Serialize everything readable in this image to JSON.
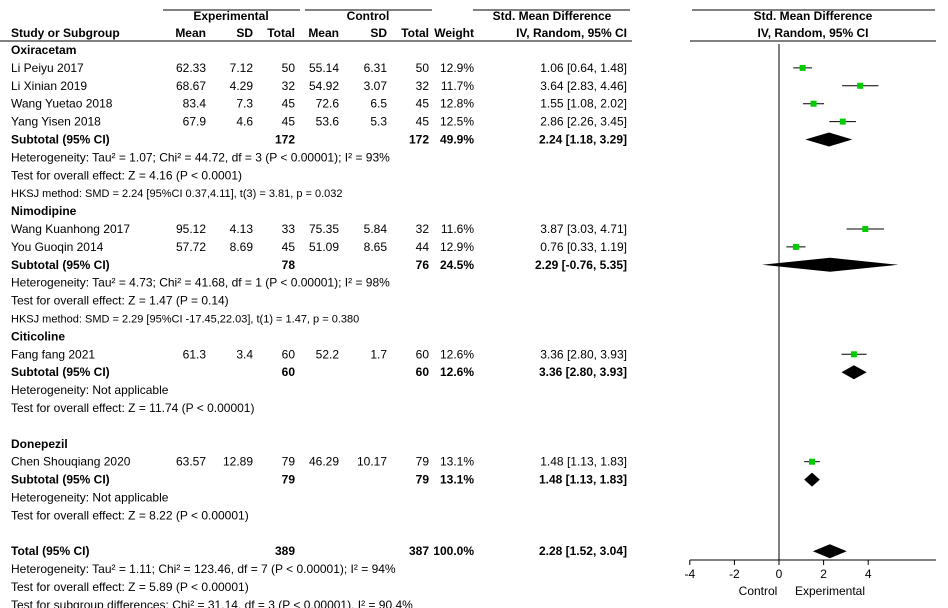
{
  "chart_data": {
    "type": "forest",
    "headers": {
      "group_experimental": "Experimental",
      "group_control": "Control",
      "study": "Study or Subgroup",
      "mean": "Mean",
      "sd": "SD",
      "total": "Total",
      "weight": "Weight",
      "smd": "Std. Mean Difference",
      "method": "IV, Random, 95% CI",
      "plot_title": "Std. Mean Difference",
      "plot_method": "IV, Random, 95% CI"
    },
    "rows": [
      {
        "kind": "group",
        "label": "Oxiracetam"
      },
      {
        "kind": "study",
        "label": "Li Peiyu 2017",
        "e_mean": "62.33",
        "e_sd": "7.12",
        "e_n": "50",
        "c_mean": "55.14",
        "c_sd": "6.31",
        "c_n": "50",
        "weight": "12.9%",
        "ci_text": "1.06 [0.64, 1.48]",
        "est": 1.06,
        "lo": 0.64,
        "hi": 1.48
      },
      {
        "kind": "study",
        "label": "Li Xinian 2019",
        "e_mean": "68.67",
        "e_sd": "4.29",
        "e_n": "32",
        "c_mean": "54.92",
        "c_sd": "3.07",
        "c_n": "32",
        "weight": "11.7%",
        "ci_text": "3.64 [2.83, 4.46]",
        "est": 3.64,
        "lo": 2.83,
        "hi": 4.46
      },
      {
        "kind": "study",
        "label": "Wang Yuetao 2018",
        "e_mean": "83.4",
        "e_sd": "7.3",
        "e_n": "45",
        "c_mean": "72.6",
        "c_sd": "6.5",
        "c_n": "45",
        "weight": "12.8%",
        "ci_text": "1.55 [1.08, 2.02]",
        "est": 1.55,
        "lo": 1.08,
        "hi": 2.02
      },
      {
        "kind": "study",
        "label": "Yang Yisen 2018",
        "e_mean": "67.9",
        "e_sd": "4.6",
        "e_n": "45",
        "c_mean": "53.6",
        "c_sd": "5.3",
        "c_n": "45",
        "weight": "12.5%",
        "ci_text": "2.86 [2.26, 3.45]",
        "est": 2.86,
        "lo": 2.26,
        "hi": 3.45
      },
      {
        "kind": "subtotal",
        "label": "Subtotal (95% CI)",
        "e_n": "172",
        "c_n": "172",
        "weight": "49.9%",
        "ci_text": "2.24 [1.18, 3.29]",
        "est": 2.24,
        "lo": 1.18,
        "hi": 3.29
      },
      {
        "kind": "note",
        "label": "Heterogeneity: Tau² = 1.07; Chi² = 44.72, df = 3 (P < 0.00001); I² = 93%"
      },
      {
        "kind": "note",
        "label": "Test for overall effect: Z = 4.16 (P < 0.0001)"
      },
      {
        "kind": "small",
        "label": "HKSJ method: SMD = 2.24 [95%CI 0.37,4.11], t(3) = 3.81, p = 0.032"
      },
      {
        "kind": "group",
        "label": "Nimodipine"
      },
      {
        "kind": "study",
        "label": "Wang Kuanhong 2017",
        "e_mean": "95.12",
        "e_sd": "4.13",
        "e_n": "33",
        "c_mean": "75.35",
        "c_sd": "5.84",
        "c_n": "32",
        "weight": "11.6%",
        "ci_text": "3.87 [3.03, 4.71]",
        "est": 3.87,
        "lo": 3.03,
        "hi": 4.71
      },
      {
        "kind": "study",
        "label": "You Guoqin 2014",
        "e_mean": "57.72",
        "e_sd": "8.69",
        "e_n": "45",
        "c_mean": "51.09",
        "c_sd": "8.65",
        "c_n": "44",
        "weight": "12.9%",
        "ci_text": "0.76 [0.33, 1.19]",
        "est": 0.76,
        "lo": 0.33,
        "hi": 1.19
      },
      {
        "kind": "subtotal",
        "label": "Subtotal (95% CI)",
        "e_n": "78",
        "c_n": "76",
        "weight": "24.5%",
        "ci_text": "2.29 [-0.76, 5.35]",
        "est": 2.29,
        "lo": -0.76,
        "hi": 5.35
      },
      {
        "kind": "note",
        "label": "Heterogeneity: Tau² = 4.73; Chi² = 41.68, df = 1 (P < 0.00001); I² = 98%"
      },
      {
        "kind": "note",
        "label": "Test for overall effect: Z = 1.47 (P = 0.14)"
      },
      {
        "kind": "small",
        "label": "HKSJ method: SMD = 2.29 [95%CI -17.45,22.03], t(1) = 1.47, p = 0.380"
      },
      {
        "kind": "group",
        "label": "Citicoline"
      },
      {
        "kind": "study",
        "label": "Fang fang 2021",
        "e_mean": "61.3",
        "e_sd": "3.4",
        "e_n": "60",
        "c_mean": "52.2",
        "c_sd": "1.7",
        "c_n": "60",
        "weight": "12.6%",
        "ci_text": "3.36 [2.80, 3.93]",
        "est": 3.36,
        "lo": 2.8,
        "hi": 3.93
      },
      {
        "kind": "subtotal",
        "label": "Subtotal (95% CI)",
        "e_n": "60",
        "c_n": "60",
        "weight": "12.6%",
        "ci_text": "3.36 [2.80, 3.93]",
        "est": 3.36,
        "lo": 2.8,
        "hi": 3.93
      },
      {
        "kind": "note",
        "label": "Heterogeneity: Not applicable"
      },
      {
        "kind": "note",
        "label": "Test for overall effect: Z = 11.74 (P < 0.00001)"
      },
      {
        "kind": "blank"
      },
      {
        "kind": "group",
        "label": "Donepezil"
      },
      {
        "kind": "study",
        "label": "Chen Shouqiang 2020",
        "e_mean": "63.57",
        "e_sd": "12.89",
        "e_n": "79",
        "c_mean": "46.29",
        "c_sd": "10.17",
        "c_n": "79",
        "weight": "13.1%",
        "ci_text": "1.48 [1.13, 1.83]",
        "est": 1.48,
        "lo": 1.13,
        "hi": 1.83
      },
      {
        "kind": "subtotal",
        "label": "Subtotal (95% CI)",
        "e_n": "79",
        "c_n": "79",
        "weight": "13.1%",
        "ci_text": "1.48 [1.13, 1.83]",
        "est": 1.48,
        "lo": 1.13,
        "hi": 1.83
      },
      {
        "kind": "note",
        "label": "Heterogeneity: Not applicable"
      },
      {
        "kind": "note",
        "label": "Test for overall effect: Z = 8.22 (P < 0.00001)"
      },
      {
        "kind": "blank"
      },
      {
        "kind": "total",
        "label": "Total (95% CI)",
        "e_n": "389",
        "c_n": "387",
        "weight": "100.0%",
        "ci_text": "2.28 [1.52, 3.04]",
        "est": 2.28,
        "lo": 1.52,
        "hi": 3.04
      },
      {
        "kind": "note",
        "label": "Heterogeneity: Tau² = 1.11; Chi² = 123.46, df = 7 (P < 0.00001); I² = 94%"
      },
      {
        "kind": "note",
        "label": "Test for overall effect: Z = 5.89 (P < 0.00001)"
      },
      {
        "kind": "note",
        "label": "Test for subgroup differences: Chi² = 31.14, df = 3 (P < 0.00001), I² = 90.4%"
      }
    ],
    "axis": {
      "xlim": [
        -6,
        6
      ],
      "ticks": [
        -4,
        -2,
        0,
        2,
        4
      ],
      "tick_labels": [
        "-4",
        "-2",
        "0",
        "2",
        "4"
      ],
      "left_label": "Control",
      "right_label": "Experimental"
    },
    "colors": {
      "point": "#00cc00",
      "line": "#000000",
      "diamond": "#000000"
    }
  }
}
